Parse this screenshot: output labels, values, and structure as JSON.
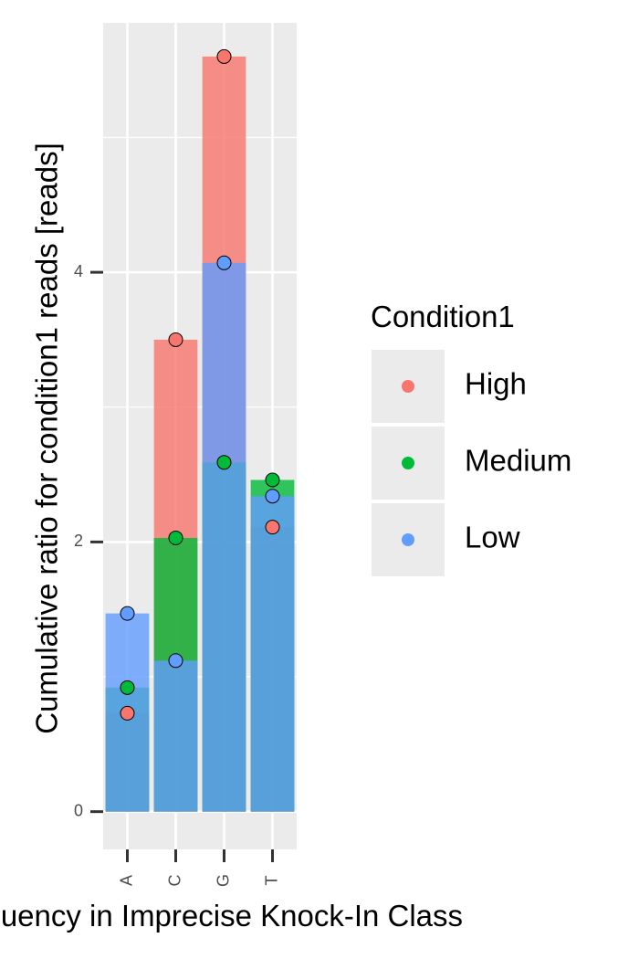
{
  "chart_data": {
    "type": "bar",
    "categories": [
      "A",
      "C",
      "G",
      "T"
    ],
    "xlabel": "Frequency in Imprecise Knock-In Class",
    "ylabel": "Cumulative ratio for condition1 reads [reads]",
    "ylim": [
      -0.28,
      5.85
    ],
    "yticks": [
      0,
      2,
      4
    ],
    "grid": true,
    "legend": {
      "title": "Condition1",
      "position": "right"
    },
    "series": [
      {
        "name": "High",
        "color": "#F8766D",
        "values": [
          0.73,
          3.5,
          5.6,
          2.11
        ]
      },
      {
        "name": "Medium",
        "color": "#00BA38",
        "values": [
          0.92,
          2.03,
          2.59,
          2.46
        ]
      },
      {
        "name": "Low",
        "color": "#619CFF",
        "values": [
          1.47,
          1.12,
          4.07,
          2.34
        ]
      }
    ]
  }
}
